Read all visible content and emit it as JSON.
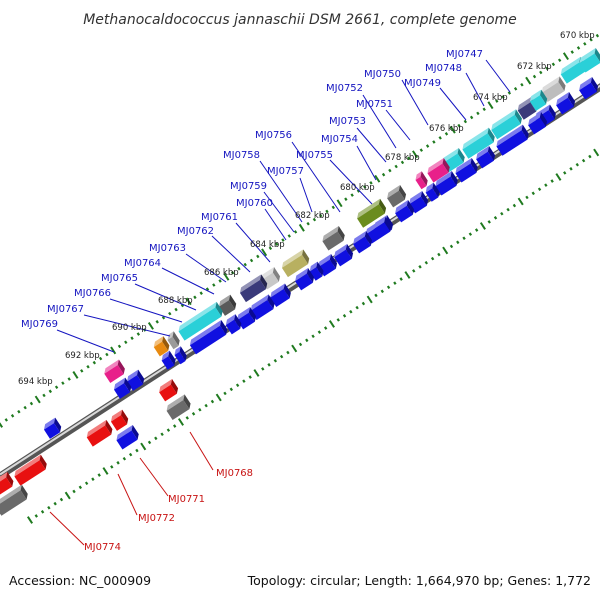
{
  "title": "Methanocaldococcus jannaschii DSM 2661, complete genome",
  "accession": "Accession: NC_000909",
  "summary": "Topology: circular; Length: 1,664,970 bp; Genes: 1,772",
  "colors": {
    "forward": "#1010e0",
    "reverse": "#e81010",
    "backbone": "#8c8c8c",
    "tick": "#1f7a1f",
    "label_blue": "#1515c0",
    "label_red": "#c81414"
  },
  "kbp_labels": [
    "670 kbp",
    "672 kbp",
    "674 kbp",
    "676 kbp",
    "678 kbp",
    "680 kbp",
    "682 kbp",
    "684 kbp",
    "686 kbp",
    "688 kbp",
    "690 kbp",
    "692 kbp",
    "694 kbp"
  ],
  "gene_labels_forward": [
    "MJ0747",
    "MJ0748",
    "MJ0749",
    "MJ0750",
    "MJ0751",
    "MJ0752",
    "MJ0753",
    "MJ0754",
    "MJ0755",
    "MJ0756",
    "MJ0757",
    "MJ0758",
    "MJ0759",
    "MJ0760",
    "MJ0761",
    "MJ0762",
    "MJ0763",
    "MJ0764",
    "MJ0765",
    "MJ0766",
    "MJ0767",
    "MJ0769"
  ],
  "gene_labels_reverse": [
    "MJ0768",
    "MJ0771",
    "MJ0772",
    "MJ0774"
  ]
}
